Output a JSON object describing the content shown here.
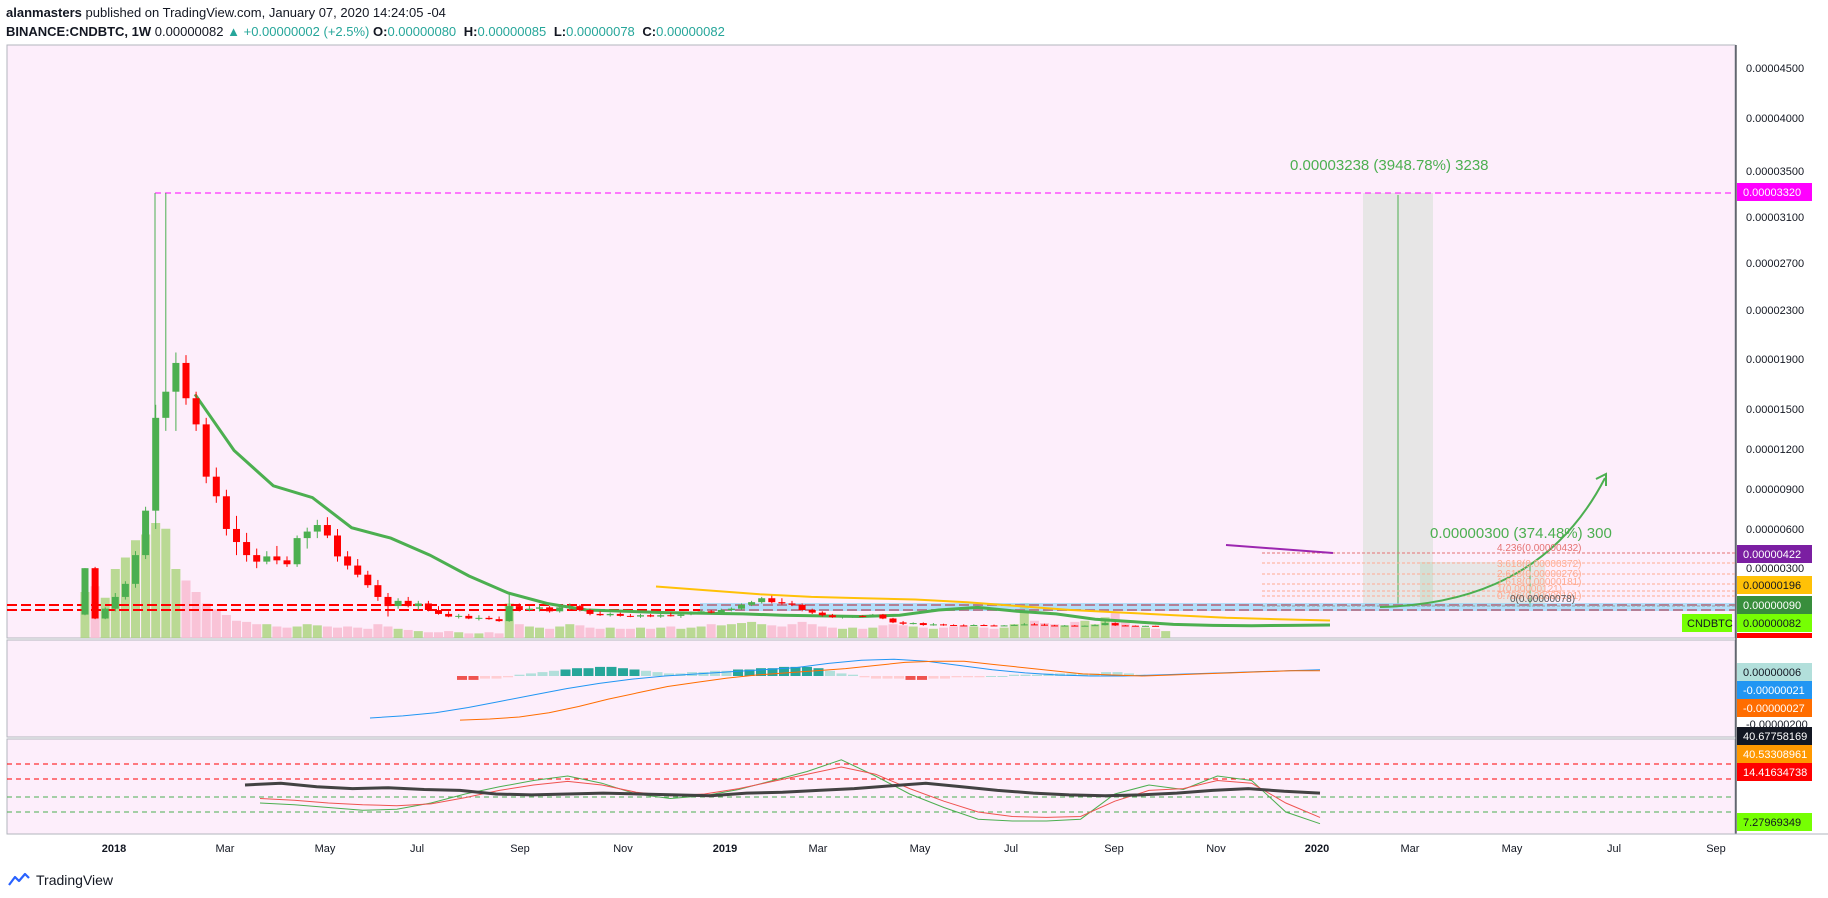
{
  "header": {
    "author": "alanmasters",
    "published": "published on TradingView.com, January 07, 2020 14:24:05 -04",
    "symbol": "BINANCE:CNDBTC, 1W",
    "last": "0.00000082",
    "change": "+0.00000002 (+2.5%)",
    "o_label": "O:",
    "o_value": "0.00000080",
    "h_label": "H:",
    "h_value": "0.00000085",
    "l_label": "L:",
    "l_value": "0.00000078",
    "c_label": "C:",
    "c_value": "0.00000082"
  },
  "footer": {
    "brand": "TradingView"
  },
  "colors": {
    "background": "#fdeefb",
    "up": "#4caf50",
    "down": "#ff0000",
    "ma_green": "#4caf50",
    "ma_yellow": "#ffc107",
    "projection": "#4caf50",
    "target": "#ff00ff",
    "macd_line": "#2196f3",
    "signal_line": "#ff6d00"
  },
  "chart_data": {
    "type": "candlestick",
    "interval": "1W",
    "xlabels": [
      "2018",
      "Mar",
      "May",
      "Jul",
      "Sep",
      "Nov",
      "2019",
      "Mar",
      "May",
      "Jul",
      "Sep",
      "Nov",
      "2020",
      "Mar",
      "May",
      "Jul",
      "Sep"
    ],
    "price_ticks": [
      "0.00004500",
      "0.00004000",
      "0.00003500",
      "0.00003100",
      "0.00002700",
      "0.00002300",
      "0.00001900",
      "0.00001500",
      "0.00001200",
      "0.00000900",
      "0.00000600",
      "0.00000300"
    ],
    "price_labels": {
      "target": "0.00003320",
      "fib_top": "0.00000422",
      "level_196": "0.00000196",
      "level_090": "0.00000090",
      "symbol": "CNDBTC",
      "last": "0.00000082"
    },
    "measure_large": "0.00003238 (3948.78%) 3238",
    "measure_small": "0.00000300 (374.48%) 300",
    "fib_labels": [
      "4.236(0.00000432)",
      "3.618(0.00000372)",
      "2.618(0.00000276)",
      "1.618(0.00000181)",
      "1(0.00000121)",
      "0.786(0.00000101)",
      "0(0.00000078)"
    ],
    "macd_labels": [
      "0.00000006",
      "-0.00000021",
      "-0.00000027",
      "-0.00000200"
    ],
    "rsi_labels": [
      "40.67758169",
      "40.53308961",
      "14.41634738",
      "7.27969349"
    ],
    "candles": [
      [
        0.95,
        4.5,
        0.9,
        4.5
      ],
      [
        4.5,
        4.6,
        0.6,
        0.65
      ],
      [
        0.65,
        1.5,
        0.6,
        1.4
      ],
      [
        1.4,
        2.6,
        1.2,
        2.3
      ],
      [
        2.3,
        3.5,
        2.1,
        3.3
      ],
      [
        3.3,
        5.8,
        3.0,
        5.5
      ],
      [
        5.5,
        9.2,
        5.2,
        8.9
      ],
      [
        8.9,
        17.0,
        7.5,
        16.0
      ],
      [
        16.0,
        33.2,
        15.0,
        18.0
      ],
      [
        18.0,
        21.0,
        15.0,
        20.2
      ],
      [
        20.2,
        20.8,
        17.0,
        17.5
      ],
      [
        17.5,
        18.0,
        15.0,
        15.5
      ],
      [
        15.5,
        16.0,
        11.0,
        11.5
      ],
      [
        11.5,
        12.2,
        9.5,
        10.0
      ],
      [
        10.0,
        10.5,
        7.0,
        7.5
      ],
      [
        7.5,
        8.5,
        5.5,
        6.5
      ],
      [
        6.5,
        7.2,
        5.0,
        5.5
      ],
      [
        5.5,
        6.0,
        4.5,
        5.0
      ],
      [
        5.0,
        5.8,
        4.8,
        5.4
      ],
      [
        5.4,
        6.2,
        4.8,
        5.1
      ],
      [
        5.1,
        5.4,
        4.6,
        4.8
      ],
      [
        4.8,
        7.0,
        4.6,
        6.8
      ],
      [
        6.8,
        7.6,
        6.0,
        7.3
      ],
      [
        7.3,
        8.2,
        6.8,
        7.8
      ],
      [
        7.8,
        8.4,
        6.8,
        7.0
      ],
      [
        7.0,
        7.5,
        5.0,
        5.4
      ],
      [
        5.4,
        5.8,
        4.4,
        4.7
      ],
      [
        4.7,
        5.2,
        3.8,
        4.0
      ],
      [
        4.0,
        4.3,
        3.0,
        3.2
      ],
      [
        3.2,
        3.6,
        2.0,
        2.3
      ],
      [
        2.3,
        2.6,
        0.8,
        1.6
      ],
      [
        1.6,
        2.2,
        1.4,
        2.0
      ],
      [
        2.0,
        2.3,
        1.5,
        1.6
      ],
      [
        1.6,
        2.0,
        1.3,
        1.8
      ],
      [
        1.8,
        2.0,
        1.2,
        1.3
      ],
      [
        1.3,
        1.6,
        0.95,
        1.0
      ],
      [
        1.0,
        1.2,
        0.75,
        0.8
      ],
      [
        0.8,
        1.0,
        0.65,
        0.85
      ],
      [
        0.85,
        1.0,
        0.6,
        0.65
      ],
      [
        0.65,
        0.9,
        0.5,
        0.7
      ],
      [
        0.7,
        0.85,
        0.55,
        0.6
      ],
      [
        0.6,
        0.8,
        0.4,
        0.45
      ],
      [
        0.45,
        2.5,
        0.4,
        1.6
      ],
      [
        1.6,
        1.8,
        1.2,
        1.3
      ],
      [
        1.3,
        1.6,
        1.2,
        1.4
      ],
      [
        1.4,
        1.7,
        1.2,
        1.5
      ],
      [
        1.5,
        1.6,
        1.1,
        1.2
      ],
      [
        1.2,
        1.6,
        1.1,
        1.5
      ],
      [
        1.5,
        1.8,
        1.3,
        1.6
      ],
      [
        1.6,
        1.7,
        1.2,
        1.3
      ],
      [
        1.3,
        1.4,
        0.9,
        1.0
      ],
      [
        1.0,
        1.2,
        0.85,
        0.9
      ],
      [
        0.9,
        1.1,
        0.8,
        1.0
      ],
      [
        1.0,
        1.1,
        0.8,
        0.85
      ],
      [
        0.85,
        1.0,
        0.75,
        0.8
      ],
      [
        0.8,
        1.0,
        0.7,
        0.9
      ],
      [
        0.9,
        1.0,
        0.75,
        0.8
      ],
      [
        0.8,
        1.0,
        0.7,
        0.9
      ],
      [
        0.9,
        1.1,
        0.8,
        0.85
      ],
      [
        0.85,
        1.0,
        0.7,
        0.95
      ],
      [
        0.95,
        1.2,
        0.9,
        1.1
      ],
      [
        1.1,
        1.3,
        1.0,
        1.2
      ],
      [
        1.2,
        1.3,
        1.05,
        1.1
      ],
      [
        1.1,
        1.4,
        1.0,
        1.3
      ],
      [
        1.3,
        1.5,
        1.2,
        1.4
      ],
      [
        1.4,
        1.8,
        1.3,
        1.7
      ],
      [
        1.7,
        2.0,
        1.6,
        1.9
      ],
      [
        1.9,
        2.3,
        1.8,
        2.2
      ],
      [
        2.2,
        2.4,
        1.8,
        1.9
      ],
      [
        1.9,
        2.2,
        1.7,
        1.8
      ],
      [
        1.8,
        2.0,
        1.6,
        1.7
      ],
      [
        1.7,
        1.8,
        1.2,
        1.3
      ],
      [
        1.3,
        1.4,
        1.0,
        1.1
      ],
      [
        1.1,
        1.2,
        0.8,
        0.9
      ],
      [
        0.9,
        1.0,
        0.7,
        0.75
      ],
      [
        0.75,
        0.9,
        0.65,
        0.8
      ],
      [
        0.8,
        0.9,
        0.7,
        0.85
      ],
      [
        0.85,
        0.9,
        0.75,
        0.8
      ],
      [
        0.8,
        1.0,
        0.75,
        0.95
      ],
      [
        0.95,
        1.0,
        0.6,
        0.65
      ],
      [
        0.65,
        0.7,
        0.3,
        0.35
      ],
      [
        0.35,
        0.45,
        0.15,
        0.25
      ],
      [
        0.25,
        0.35,
        0.2,
        0.3
      ],
      [
        0.3,
        0.35,
        0.1,
        0.15
      ],
      [
        0.15,
        0.3,
        0.1,
        0.2
      ],
      [
        0.2,
        0.25,
        0.1,
        0.15
      ],
      [
        0.15,
        0.2,
        0.08,
        0.12
      ],
      [
        0.12,
        0.2,
        0.08,
        0.1
      ],
      [
        0.1,
        0.2,
        0.08,
        0.15
      ],
      [
        0.15,
        0.2,
        0.1,
        0.12
      ],
      [
        0.12,
        0.18,
        0.08,
        0.1
      ],
      [
        0.1,
        0.15,
        0.08,
        0.12
      ],
      [
        0.12,
        0.2,
        0.1,
        0.16
      ],
      [
        0.16,
        0.3,
        0.12,
        0.2
      ],
      [
        0.2,
        0.3,
        0.15,
        0.18
      ],
      [
        0.18,
        0.25,
        0.1,
        0.12
      ],
      [
        0.12,
        0.16,
        0.08,
        0.1
      ],
      [
        0.1,
        0.15,
        0.08,
        0.11
      ],
      [
        0.11,
        0.15,
        0.08,
        0.09
      ],
      [
        0.09,
        0.12,
        0.07,
        0.1
      ],
      [
        0.1,
        0.2,
        0.08,
        0.14
      ],
      [
        0.14,
        0.6,
        0.12,
        0.3
      ],
      [
        0.3,
        0.35,
        0.08,
        0.12
      ],
      [
        0.12,
        0.15,
        0.08,
        0.1
      ],
      [
        0.1,
        0.12,
        0.07,
        0.08
      ],
      [
        0.08,
        0.1,
        0.07,
        0.09
      ],
      [
        0.09,
        0.1,
        0.08,
        0.082
      ]
    ],
    "ma_green": [
      17.8,
      13.5,
      10.8,
      9.9,
      7.6,
      6.8,
      5.5,
      3.9,
      2.6,
      1.8,
      1.3,
      1.2,
      1.1,
      1.05,
      1.0,
      0.9,
      0.85,
      0.8,
      0.9,
      1.3,
      1.5,
      1.2,
      1.0,
      0.6,
      0.4,
      0.2,
      0.12,
      0.1,
      0.12,
      0.15
    ],
    "ma_yellow": [
      3.1,
      2.8,
      2.5,
      2.3,
      2.2,
      2.1,
      1.9,
      1.6,
      1.3,
      1.1,
      0.9,
      0.7,
      0.6,
      0.5
    ],
    "volume": [
      40,
      45,
      35,
      60,
      70,
      85,
      90,
      100,
      95,
      60,
      50,
      40,
      30,
      25,
      20,
      15,
      14,
      12,
      12,
      10,
      9,
      10,
      12,
      11,
      10,
      9,
      10,
      9,
      8,
      12,
      10,
      8,
      7,
      6,
      5,
      5,
      6,
      5,
      4,
      4,
      5,
      4,
      30,
      12,
      10,
      9,
      8,
      10,
      12,
      11,
      9,
      8,
      9,
      8,
      8,
      9,
      8,
      9,
      10,
      8,
      9,
      10,
      12,
      11,
      12,
      13,
      14,
      12,
      11,
      10,
      12,
      14,
      12,
      10,
      9,
      8,
      9,
      8,
      9,
      11,
      12,
      11,
      10,
      9,
      8,
      9,
      10,
      11,
      10,
      9,
      8,
      9,
      12,
      30,
      15,
      13,
      12,
      11,
      14,
      15,
      12,
      18,
      22,
      14,
      10,
      9,
      8,
      6
    ],
    "macd_hist": [
      -3,
      -3,
      -2,
      -2,
      -1,
      1,
      2,
      3,
      4,
      5,
      6,
      6,
      7,
      7,
      6,
      5,
      4,
      3,
      2,
      2,
      3,
      3,
      4,
      4,
      5,
      5,
      6,
      6,
      7,
      7,
      7,
      6,
      4,
      2,
      1,
      -1,
      -2,
      -2,
      -2,
      -3,
      -3,
      -2,
      -2,
      -1,
      -1,
      -1,
      0,
      0,
      1,
      1,
      1,
      2,
      2,
      2,
      2,
      2,
      3,
      3,
      2,
      1
    ],
    "macd_line": [
      -40,
      -38,
      -35,
      -30,
      -24,
      -18,
      -12,
      -7,
      -3,
      0,
      2,
      4,
      6,
      8,
      12,
      15,
      16,
      14,
      10,
      6,
      3,
      1,
      0,
      0,
      1,
      2,
      3,
      4,
      5,
      6
    ],
    "signal_line": [
      -42,
      -41,
      -39,
      -35,
      -29,
      -22,
      -16,
      -10,
      -6,
      -2,
      1,
      3,
      5,
      7,
      10,
      13,
      14,
      14,
      11,
      8,
      5,
      2,
      1,
      0,
      1,
      2,
      3,
      4,
      5,
      5
    ],
    "rsi_main": [
      50,
      52,
      48,
      46,
      47,
      45,
      44,
      40,
      39,
      40,
      41,
      40,
      39,
      38,
      41,
      42,
      44,
      46,
      49,
      52,
      48,
      44,
      41,
      39,
      38,
      39,
      41,
      44,
      46,
      43,
      41
    ],
    "rsi_fast": [
      30,
      28,
      25,
      22,
      23,
      30,
      40,
      48,
      55,
      60,
      52,
      40,
      35,
      38,
      45,
      55,
      65,
      78,
      60,
      40,
      25,
      12,
      10,
      10,
      12,
      40,
      50,
      45,
      60,
      55,
      20,
      7
    ],
    "rsi_slow": [
      35,
      33,
      30,
      28,
      27,
      29,
      36,
      44,
      50,
      54,
      50,
      42,
      38,
      40,
      46,
      54,
      62,
      70,
      62,
      46,
      32,
      20,
      15,
      14,
      15,
      32,
      44,
      46,
      55,
      52,
      30,
      14
    ]
  }
}
